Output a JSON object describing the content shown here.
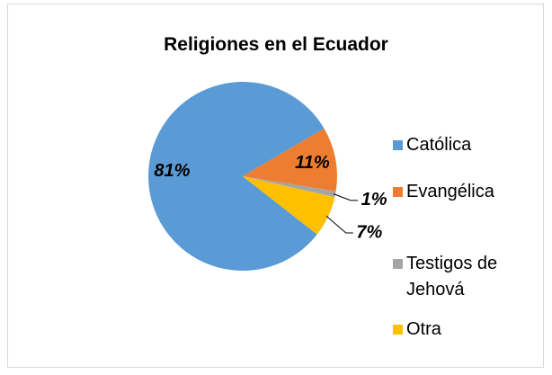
{
  "chart_data": {
    "type": "pie",
    "title": "Religiones en el Ecuador",
    "categories": [
      "Católica",
      "Evangélica",
      "Testigos de Jehová",
      "Otra"
    ],
    "values": [
      81,
      11,
      1,
      7
    ],
    "value_labels": [
      "81%",
      "11%",
      "1%",
      "7%"
    ],
    "colors": [
      "#5b9bd5",
      "#ed7d31",
      "#a5a5a5",
      "#ffc000"
    ],
    "legend": "right"
  }
}
